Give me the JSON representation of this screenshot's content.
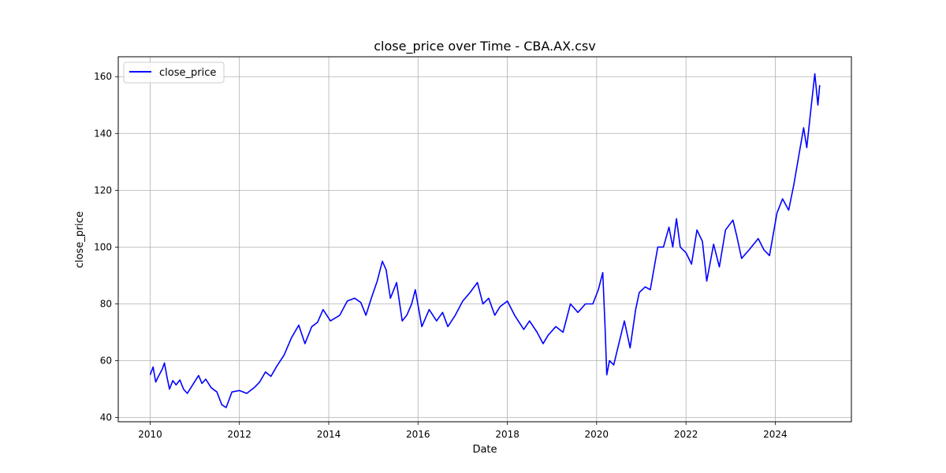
{
  "chart_data": {
    "type": "line",
    "title": "close_price over Time - CBA.AX.csv",
    "xlabel": "Date",
    "ylabel": "close_price",
    "x_ticks": [
      "2010",
      "2012",
      "2014",
      "2016",
      "2018",
      "2020",
      "2022",
      "2024"
    ],
    "y_ticks": [
      "40",
      "60",
      "80",
      "100",
      "120",
      "140",
      "160"
    ],
    "xlim": [
      "2009-04-15",
      "2025-09-15"
    ],
    "ylim": [
      38.5,
      167
    ],
    "grid": true,
    "legend_position": "top-left",
    "series": [
      {
        "name": "close_price",
        "color": "#0000ff",
        "points": [
          [
            "2010-01-01",
            55
          ],
          [
            "2010-01-25",
            57.8
          ],
          [
            "2010-02-15",
            52.5
          ],
          [
            "2010-03-10",
            54.5
          ],
          [
            "2010-04-10",
            57
          ],
          [
            "2010-04-28",
            59.2
          ],
          [
            "2010-05-20",
            54
          ],
          [
            "2010-06-08",
            50
          ],
          [
            "2010-07-05",
            53
          ],
          [
            "2010-08-01",
            51.5
          ],
          [
            "2010-09-01",
            53.2
          ],
          [
            "2010-10-01",
            50
          ],
          [
            "2010-11-01",
            48.5
          ],
          [
            "2010-12-15",
            51.5
          ],
          [
            "2011-02-01",
            54.8
          ],
          [
            "2011-03-01",
            52
          ],
          [
            "2011-04-01",
            53.5
          ],
          [
            "2011-05-15",
            50.5
          ],
          [
            "2011-07-01",
            49
          ],
          [
            "2011-08-10",
            44.5
          ],
          [
            "2011-09-15",
            43.5
          ],
          [
            "2011-11-01",
            49
          ],
          [
            "2012-01-01",
            49.5
          ],
          [
            "2012-03-01",
            48.5
          ],
          [
            "2012-05-01",
            50.5
          ],
          [
            "2012-06-15",
            52.5
          ],
          [
            "2012-08-01",
            56
          ],
          [
            "2012-09-15",
            54.5
          ],
          [
            "2012-11-01",
            58
          ],
          [
            "2013-01-01",
            62
          ],
          [
            "2013-03-01",
            68
          ],
          [
            "2013-05-01",
            72.5
          ],
          [
            "2013-06-20",
            66
          ],
          [
            "2013-08-15",
            72
          ],
          [
            "2013-10-01",
            73.5
          ],
          [
            "2013-11-15",
            78
          ],
          [
            "2014-01-15",
            74
          ],
          [
            "2014-04-01",
            76
          ],
          [
            "2014-06-01",
            81
          ],
          [
            "2014-08-01",
            82
          ],
          [
            "2014-09-20",
            80.5
          ],
          [
            "2014-11-01",
            76
          ],
          [
            "2014-12-15",
            82
          ],
          [
            "2015-02-01",
            88
          ],
          [
            "2015-03-15",
            95
          ],
          [
            "2015-04-15",
            92
          ],
          [
            "2015-05-20",
            82
          ],
          [
            "2015-07-10",
            87.5
          ],
          [
            "2015-08-25",
            74
          ],
          [
            "2015-10-01",
            76
          ],
          [
            "2015-11-10",
            80
          ],
          [
            "2015-12-10",
            85
          ],
          [
            "2016-02-01",
            72
          ],
          [
            "2016-04-01",
            78
          ],
          [
            "2016-06-01",
            74
          ],
          [
            "2016-07-20",
            77
          ],
          [
            "2016-09-01",
            72
          ],
          [
            "2016-11-01",
            76
          ],
          [
            "2017-01-01",
            81
          ],
          [
            "2017-03-01",
            84
          ],
          [
            "2017-05-01",
            87.5
          ],
          [
            "2017-06-15",
            80
          ],
          [
            "2017-08-01",
            82
          ],
          [
            "2017-09-20",
            76
          ],
          [
            "2017-11-01",
            79
          ],
          [
            "2018-01-01",
            81
          ],
          [
            "2018-03-01",
            76
          ],
          [
            "2018-05-15",
            71
          ],
          [
            "2018-07-01",
            74
          ],
          [
            "2018-09-01",
            70
          ],
          [
            "2018-10-20",
            66
          ],
          [
            "2018-12-01",
            69
          ],
          [
            "2019-02-01",
            72
          ],
          [
            "2019-04-01",
            70
          ],
          [
            "2019-06-01",
            80
          ],
          [
            "2019-08-01",
            77
          ],
          [
            "2019-10-01",
            80
          ],
          [
            "2019-12-01",
            80
          ],
          [
            "2020-01-15",
            85
          ],
          [
            "2020-02-20",
            91
          ],
          [
            "2020-03-10",
            72
          ],
          [
            "2020-03-24",
            55
          ],
          [
            "2020-04-15",
            60
          ],
          [
            "2020-05-20",
            58.5
          ],
          [
            "2020-07-01",
            66
          ],
          [
            "2020-08-15",
            74
          ],
          [
            "2020-10-01",
            64.5
          ],
          [
            "2020-11-15",
            78
          ],
          [
            "2020-12-15",
            84
          ],
          [
            "2021-02-01",
            86
          ],
          [
            "2021-03-15",
            85
          ],
          [
            "2021-05-15",
            100
          ],
          [
            "2021-07-01",
            100
          ],
          [
            "2021-08-15",
            107
          ],
          [
            "2021-09-15",
            100
          ],
          [
            "2021-10-15",
            110
          ],
          [
            "2021-11-15",
            100
          ],
          [
            "2022-01-01",
            98
          ],
          [
            "2022-02-15",
            94
          ],
          [
            "2022-04-01",
            106
          ],
          [
            "2022-05-15",
            102
          ],
          [
            "2022-06-20",
            88
          ],
          [
            "2022-08-15",
            101
          ],
          [
            "2022-10-01",
            93
          ],
          [
            "2022-11-20",
            106
          ],
          [
            "2023-01-20",
            109.5
          ],
          [
            "2023-02-20",
            104
          ],
          [
            "2023-04-01",
            96
          ],
          [
            "2023-06-01",
            99
          ],
          [
            "2023-08-15",
            103
          ],
          [
            "2023-10-01",
            99
          ],
          [
            "2023-11-15",
            97
          ],
          [
            "2024-01-15",
            112
          ],
          [
            "2024-03-01",
            117
          ],
          [
            "2024-04-20",
            113
          ],
          [
            "2024-06-01",
            122
          ],
          [
            "2024-07-15",
            133
          ],
          [
            "2024-08-20",
            142
          ],
          [
            "2024-09-15",
            135
          ],
          [
            "2024-10-20",
            149
          ],
          [
            "2024-11-20",
            161
          ],
          [
            "2024-12-15",
            150
          ],
          [
            "2024-12-30",
            157
          ]
        ]
      }
    ]
  }
}
